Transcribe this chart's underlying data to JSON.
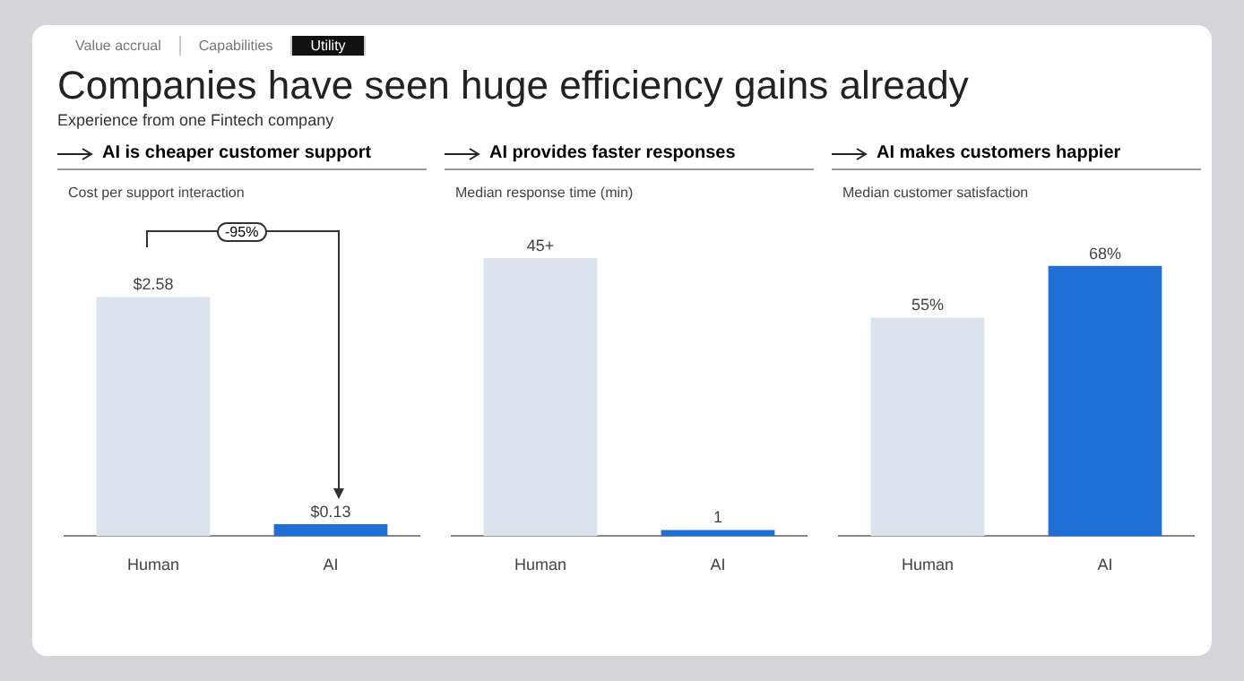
{
  "chart_data": [
    {
      "type": "other",
      "title": "Companies have seen huge efficiency gains already",
      "subtitle": "Experience from one Fintech company",
      "annotations": [
        "Value accrual",
        "Capabilities",
        "Utility"
      ]
    },
    {
      "type": "bar",
      "title": "AI is cheaper customer support",
      "subtitle": "Cost per support interaction",
      "categories": [
        "Human",
        "AI"
      ],
      "values": [
        2.58,
        0.13
      ],
      "colors": [
        "#dde3ec",
        "#1f6fd6"
      ],
      "value_labels": [
        "$2.58",
        "$0.13"
      ],
      "annotations": [
        "-95%"
      ]
    },
    {
      "type": "bar",
      "title": "AI provides faster responses",
      "subtitle": "Median response time (min)",
      "categories": [
        "Human",
        "AI"
      ],
      "values": [
        45,
        1
      ],
      "colors": [
        "#dde3ec",
        "#1f6fd6"
      ],
      "value_labels": [
        "45+",
        "1"
      ]
    },
    {
      "type": "bar",
      "title": "AI makes customers happier",
      "subtitle": "Median customer satisfaction",
      "categories": [
        "Human",
        "AI"
      ],
      "values": [
        55,
        68
      ],
      "colors": [
        "#dde3ec",
        "#1f6fd6"
      ],
      "value_labels": [
        "55%",
        "68%"
      ]
    }
  ]
}
